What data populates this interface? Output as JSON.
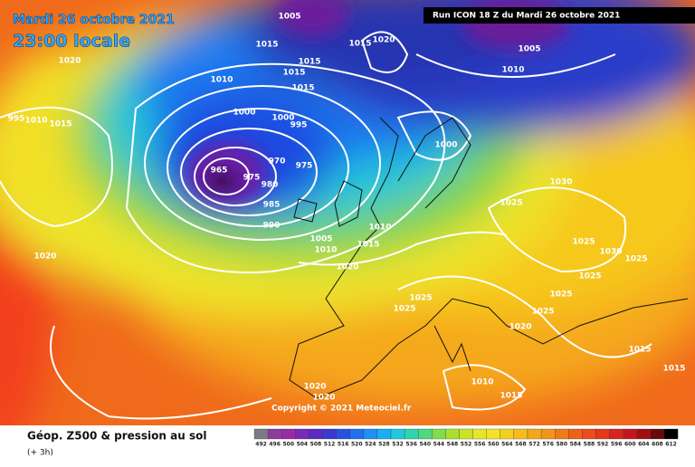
{
  "header": {
    "date": "Mardi 26 octobre 2021",
    "time": "23:00 locale",
    "run": "Run ICON 18 Z du Mardi 26 octobre 2021"
  },
  "map": {
    "pressure_labels": [
      1005,
      1015,
      1020,
      1015,
      1015,
      1015,
      1010,
      1000,
      1000,
      995,
      965,
      975,
      970,
      975,
      980,
      985,
      990,
      1005,
      1010,
      1015,
      1020,
      1010,
      1000,
      1015,
      1020,
      1005,
      1010,
      1025,
      1030,
      1025,
      1030,
      1025,
      1025,
      1025,
      1025,
      1020,
      1025,
      1025,
      1020,
      1010,
      1015,
      1015,
      1015,
      1020,
      1020,
      1015,
      1010,
      995
    ],
    "copyright": "Copyright © 2021 Meteociel.fr"
  },
  "legend": {
    "title": "Géop. Z500 & pression au sol",
    "lead": "(+ 3h)",
    "scale": [
      492,
      496,
      500,
      504,
      508,
      512,
      516,
      520,
      524,
      528,
      532,
      536,
      540,
      544,
      548,
      552,
      556,
      560,
      564,
      568,
      572,
      576,
      580,
      584,
      588,
      592,
      596,
      600,
      604,
      608,
      612
    ]
  }
}
